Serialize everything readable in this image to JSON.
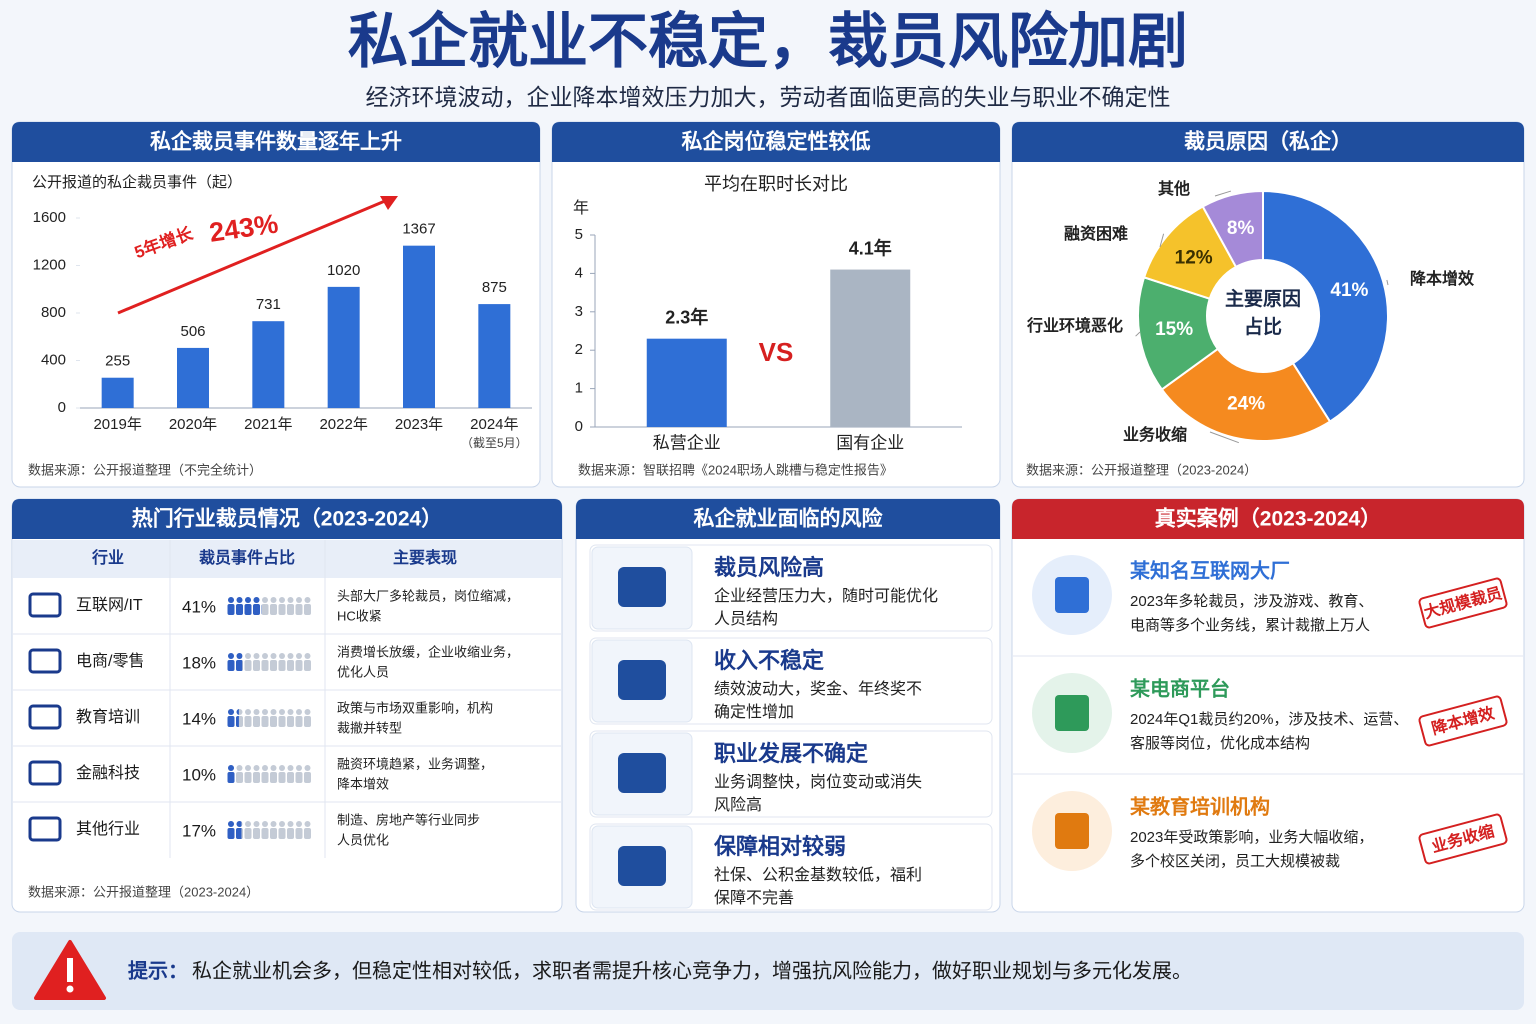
{
  "header": {
    "title": "私企就业不稳定，裁员风险加剧",
    "subtitle": "经济环境波动，企业降本增效压力加大，劳动者面临更高的失业与职业不确定性"
  },
  "chart_data": [
    {
      "type": "bar",
      "title": "私企裁员事件数量逐年上升",
      "y_label": "公开报道的私企裁员事件（起）",
      "categories": [
        "2019年",
        "2020年",
        "2021年",
        "2022年",
        "2023年",
        "2024年"
      ],
      "note": "（截至5月）",
      "values": [
        255,
        506,
        731,
        1020,
        1367,
        875
      ],
      "color": "#2f6fd6",
      "ylim": [
        0,
        1600
      ],
      "yticks": [
        0,
        400,
        800,
        1200,
        1600
      ],
      "annotations": [
        "5年增长",
        "243%"
      ],
      "source": "数据来源：公开报道整理（不完全统计）"
    },
    {
      "type": "bar",
      "title": "私企岗位稳定性较低",
      "subtitle": "平均在职时长对比",
      "y_label": "年",
      "categories": [
        "私营企业",
        "国有企业"
      ],
      "values": [
        2.3,
        4.1
      ],
      "value_labels": [
        "2.3年",
        "4.1年"
      ],
      "colors": [
        "#2f6fd6",
        "#aab5c3"
      ],
      "ylim": [
        0,
        5
      ],
      "yticks": [
        0,
        1,
        2,
        3,
        4,
        5
      ],
      "annotation": "VS",
      "source": "数据来源：智联招聘《2024职场人跳槽与稳定性报告》"
    },
    {
      "type": "pie",
      "title": "裁员原因（私企）",
      "center_label": [
        "主要原因",
        "占比"
      ],
      "categories": [
        "降本增效",
        "业务收缩",
        "行业环境恶化",
        "融资困难",
        "其他"
      ],
      "values": [
        41,
        24,
        15,
        12,
        8
      ],
      "value_labels": [
        "41%",
        "24%",
        "15%",
        "12%",
        "8%"
      ],
      "colors": [
        "#2f6fd6",
        "#f58a1f",
        "#4caf6e",
        "#f5c22b",
        "#a58ad8"
      ],
      "source": "数据来源：公开报道整理（2023-2024）"
    }
  ],
  "industry": {
    "title": "热门行业裁员情况（2023-2024）",
    "headers": [
      "行业",
      "裁员事件占比",
      "主要表现"
    ],
    "rows": [
      {
        "name": "互联网/IT",
        "share": 41,
        "share_label": "41%",
        "desc": [
          "头部大厂多轮裁员，岗位缩减，",
          "HC收紧"
        ]
      },
      {
        "name": "电商/零售",
        "share": 18,
        "share_label": "18%",
        "desc": [
          "消费增长放缓，企业收缩业务，",
          "优化人员"
        ]
      },
      {
        "name": "教育培训",
        "share": 14,
        "share_label": "14%",
        "desc": [
          "政策与市场双重影响，机构",
          "裁撤并转型"
        ]
      },
      {
        "name": "金融科技",
        "share": 10,
        "share_label": "10%",
        "desc": [
          "融资环境趋紧，业务调整，",
          "降本增效"
        ]
      },
      {
        "name": "其他行业",
        "share": 17,
        "share_label": "17%",
        "desc": [
          "制造、房地产等行业同步",
          "人员优化"
        ]
      }
    ],
    "source": "数据来源：公开报道整理（2023-2024）"
  },
  "risks": {
    "title": "私企就业面临的风险",
    "items": [
      {
        "title": "裁员风险高",
        "desc": [
          "企业经营压力大，随时可能优化",
          "人员结构"
        ]
      },
      {
        "title": "收入不稳定",
        "desc": [
          "绩效波动大，奖金、年终奖不",
          "确定性增加"
        ]
      },
      {
        "title": "职业发展不确定",
        "desc": [
          "业务调整快，岗位变动或消失",
          "风险高"
        ]
      },
      {
        "title": "保障相对较弱",
        "desc": [
          "社保、公积金基数较低，福利",
          "保障不完善"
        ]
      }
    ]
  },
  "cases": {
    "title": "真实案例（2023-2024）",
    "items": [
      {
        "name": "某知名互联网大厂",
        "desc": [
          "2023年多轮裁员，涉及游戏、教育、",
          "电商等多个业务线，累计裁撤上万人"
        ],
        "stamp": "大规模裁员"
      },
      {
        "name": "某电商平台",
        "desc": [
          "2024年Q1裁员约20%，涉及技术、运营、",
          "客服等岗位，优化成本结构"
        ],
        "stamp": "降本增效"
      },
      {
        "name": "某教育培训机构",
        "desc": [
          "2023年受政策影响，业务大幅收缩，",
          "多个校区关闭，员工大规模被裁"
        ],
        "stamp": "业务收缩"
      }
    ]
  },
  "tip": {
    "label": "提示：",
    "text": "私企就业机会多，但稳定性相对较低，求职者需提升核心竞争力，增强抗风险能力，做好职业规划与多元化发展。"
  }
}
